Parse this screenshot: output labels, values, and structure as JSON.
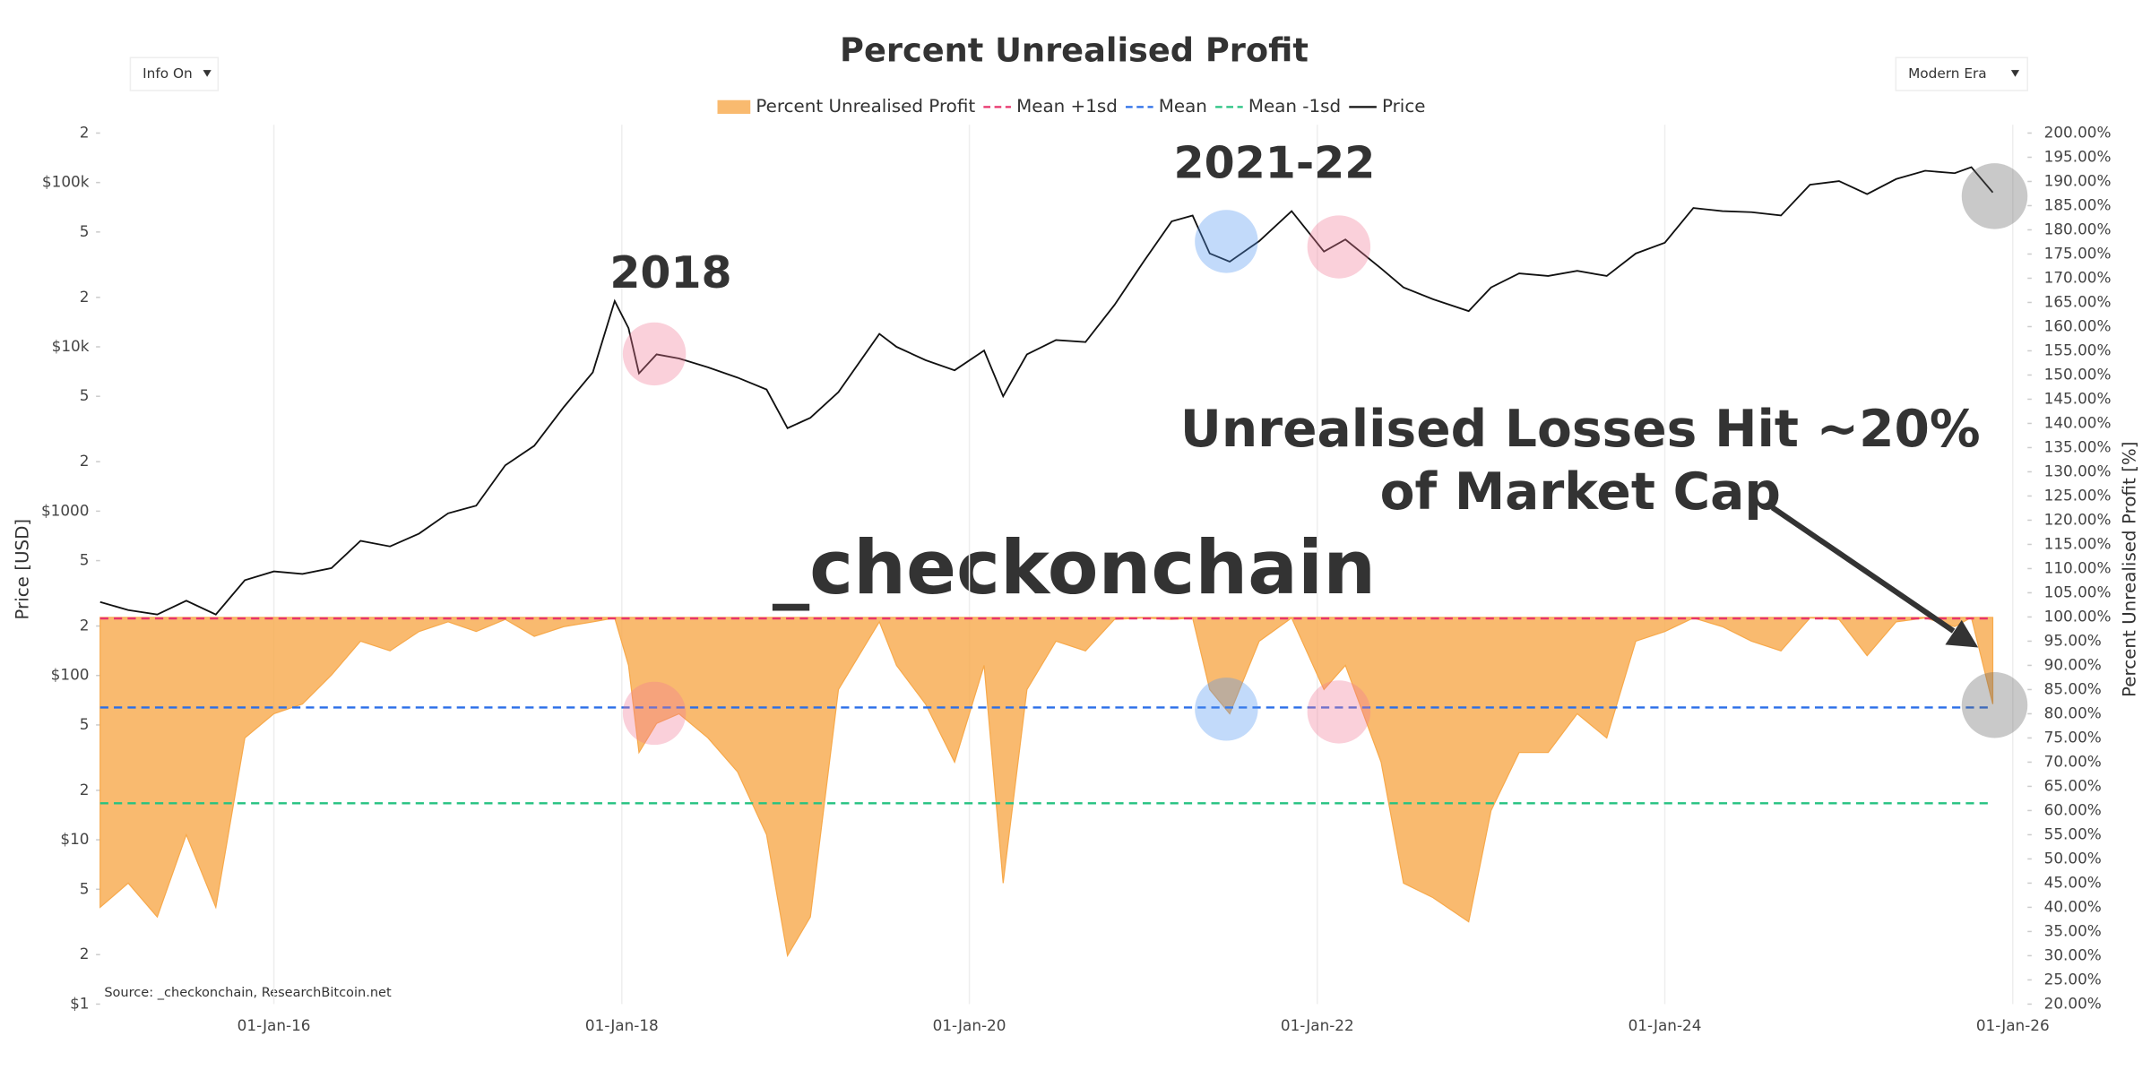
{
  "chart_data": {
    "type": "area-line",
    "title": "Percent Unrealised Profit",
    "controls": [
      "Info On",
      "Modern Era"
    ],
    "y_label": "Price [USD]",
    "y2_label": "Percent Unrealised Profit [%]",
    "source": "Source: _checkonchain, ResearchBitcoin.net",
    "watermark": "_checkonchain",
    "annotations": [
      "2018",
      "2021-22"
    ],
    "callout": [
      "Unrealised Losses Hit ~20%",
      "of Market Cap"
    ],
    "log_y": true,
    "xgrid": true,
    "xlim": [
      "2015-01-01",
      "2026-02-01"
    ],
    "xticks": [
      {
        "value": "2016-01-01",
        "label": "01-Jan-16"
      },
      {
        "value": "2018-01-01",
        "label": "01-Jan-18"
      },
      {
        "value": "2020-01-01",
        "label": "01-Jan-20"
      },
      {
        "value": "2022-01-01",
        "label": "01-Jan-22"
      },
      {
        "value": "2024-01-01",
        "label": "01-Jan-24"
      },
      {
        "value": "2026-01-01",
        "label": "01-Jan-26"
      }
    ],
    "ylim": [
      1,
      200000
    ],
    "yticks": [
      {
        "value": 1,
        "label": "$1"
      },
      2,
      5,
      {
        "value": 10,
        "label": "$10"
      },
      {
        "value": 20,
        "label": "2"
      },
      {
        "value": 50,
        "label": "5"
      },
      {
        "value": 100,
        "label": "$100"
      },
      {
        "value": 200,
        "label": "2"
      },
      {
        "value": 500,
        "label": "5"
      },
      {
        "value": 1000,
        "label": "$1000"
      },
      {
        "value": 2000,
        "label": "2"
      },
      {
        "value": 5000,
        "label": "5"
      },
      {
        "value": 10000,
        "label": "$10k"
      },
      {
        "value": 20000,
        "label": "2"
      },
      {
        "value": 50000,
        "label": "5"
      },
      {
        "value": 100000,
        "label": "$100k"
      },
      {
        "value": 200000,
        "label": "2"
      }
    ],
    "y2lim": [
      20,
      200
    ],
    "y2ticks": [
      {
        "value": 20,
        "label": "20.00%"
      },
      {
        "value": 25,
        "label": "25.00%"
      },
      {
        "value": 30,
        "label": "30.00%"
      },
      {
        "value": 35,
        "label": "35.00%"
      },
      {
        "value": 40,
        "label": "40.00%"
      },
      {
        "value": 45,
        "label": "45.00%"
      },
      {
        "value": 50,
        "label": "50.00%"
      },
      {
        "value": 55,
        "label": "55.00%"
      },
      {
        "value": 60,
        "label": "60.00%"
      },
      {
        "value": 65,
        "label": "65.00%"
      },
      {
        "value": 70,
        "label": "70.00%"
      },
      {
        "value": 75,
        "label": "75.00%"
      },
      {
        "value": 80,
        "label": "80.00%"
      },
      {
        "value": 85,
        "label": "85.00%"
      },
      {
        "value": 90,
        "label": "90.00%"
      },
      {
        "value": 95,
        "label": "95.00%"
      },
      {
        "value": 100,
        "label": "100.00%"
      },
      {
        "value": 105,
        "label": "105.00%"
      },
      {
        "value": 110,
        "label": "110.00%"
      },
      {
        "value": 115,
        "label": "115.00%"
      },
      {
        "value": 120,
        "label": "120.00%"
      },
      {
        "value": 125,
        "label": "125.00%"
      },
      {
        "value": 130,
        "label": "130.00%"
      },
      {
        "value": 135,
        "label": "135.00%"
      },
      {
        "value": 140,
        "label": "140.00%"
      },
      {
        "value": 145,
        "label": "145.00%"
      },
      {
        "value": 150,
        "label": "150.00%"
      },
      {
        "value": 155,
        "label": "155.00%"
      },
      {
        "value": 160,
        "label": "160.00%"
      },
      {
        "value": 165,
        "label": "165.00%"
      },
      {
        "value": 170,
        "label": "170.00%"
      },
      {
        "value": 175,
        "label": "175.00%"
      },
      {
        "value": 180,
        "label": "180.00%"
      },
      {
        "value": 185,
        "label": "185.00%"
      },
      {
        "value": 190,
        "label": "190.00%"
      },
      {
        "value": 195,
        "label": "195.00%"
      },
      {
        "value": 200,
        "label": "200.00%"
      }
    ],
    "series": [
      {
        "name": "Percent Unrealised Profit",
        "kind": "area",
        "axis": "y2",
        "color": "#f7a94b",
        "x": [
          "2015-01-01",
          "2015-03-01",
          "2015-05-01",
          "2015-07-01",
          "2015-09-01",
          "2015-11-01",
          "2016-01-01",
          "2016-03-01",
          "2016-05-01",
          "2016-07-01",
          "2016-09-01",
          "2016-11-01",
          "2017-01-01",
          "2017-03-01",
          "2017-05-01",
          "2017-07-01",
          "2017-09-01",
          "2017-11-01",
          "2017-12-17",
          "2018-01-15",
          "2018-02-06",
          "2018-03-15",
          "2018-05-01",
          "2018-07-01",
          "2018-09-01",
          "2018-11-01",
          "2018-12-15",
          "2019-02-01",
          "2019-04-01",
          "2019-06-26",
          "2019-08-01",
          "2019-10-01",
          "2019-12-01",
          "2020-02-01",
          "2020-03-12",
          "2020-05-01",
          "2020-07-01",
          "2020-09-01",
          "2020-11-01",
          "2021-01-01",
          "2021-03-01",
          "2021-04-14",
          "2021-05-20",
          "2021-07-01",
          "2021-09-01",
          "2021-11-08",
          "2022-01-15",
          "2022-03-01",
          "2022-05-15",
          "2022-07-01",
          "2022-09-01",
          "2022-11-15",
          "2023-01-01",
          "2023-03-01",
          "2023-05-01",
          "2023-07-01",
          "2023-09-01",
          "2023-11-01",
          "2024-01-01",
          "2024-03-01",
          "2024-05-01",
          "2024-07-01",
          "2024-09-01",
          "2024-11-01",
          "2025-01-01",
          "2025-03-01",
          "2025-05-01",
          "2025-07-01",
          "2025-09-01",
          "2025-10-06",
          "2025-11-20"
        ],
        "values": [
          40,
          45,
          38,
          55,
          40,
          75,
          80,
          82,
          88,
          95,
          93,
          97,
          99,
          97,
          99.5,
          96,
          98,
          99,
          99.8,
          90,
          72,
          78,
          80,
          75,
          68,
          55,
          30,
          38,
          85,
          99,
          90,
          82,
          70,
          90,
          45,
          85,
          95,
          93,
          99.5,
          99.8,
          99.5,
          99.8,
          85,
          80,
          95,
          99.8,
          85,
          90,
          70,
          45,
          42,
          37,
          60,
          72,
          72,
          80,
          75,
          95,
          97,
          99.8,
          98,
          95,
          93,
          99.8,
          99.5,
          92,
          99,
          99.8,
          98,
          99.9,
          82
        ]
      },
      {
        "name": "Mean +1sd",
        "kind": "dash",
        "axis": "y2",
        "color": "#e8336b",
        "x": [
          "2015-01-01",
          "2025-11-20"
        ],
        "values": [
          99.7,
          99.7
        ]
      },
      {
        "name": "Mean",
        "kind": "dash",
        "axis": "y2",
        "color": "#2a6ee8",
        "x": [
          "2015-01-01",
          "2025-11-20"
        ],
        "values": [
          81.3,
          81.3
        ]
      },
      {
        "name": "Mean -1sd",
        "kind": "dash",
        "axis": "y2",
        "color": "#26c281",
        "x": [
          "2015-01-01",
          "2025-11-20"
        ],
        "values": [
          61.5,
          61.5
        ]
      },
      {
        "name": "Price",
        "kind": "line",
        "axis": "y",
        "color": "#111111",
        "x": [
          "2015-01-01",
          "2015-03-01",
          "2015-05-01",
          "2015-07-01",
          "2015-09-01",
          "2015-11-01",
          "2016-01-01",
          "2016-03-01",
          "2016-05-01",
          "2016-07-01",
          "2016-09-01",
          "2016-11-01",
          "2017-01-01",
          "2017-03-01",
          "2017-05-01",
          "2017-07-01",
          "2017-09-01",
          "2017-11-01",
          "2017-12-17",
          "2018-01-15",
          "2018-02-06",
          "2018-03-15",
          "2018-05-01",
          "2018-07-01",
          "2018-09-01",
          "2018-11-01",
          "2018-12-15",
          "2019-02-01",
          "2019-04-01",
          "2019-06-26",
          "2019-08-01",
          "2019-10-01",
          "2019-12-01",
          "2020-02-01",
          "2020-03-12",
          "2020-05-01",
          "2020-07-01",
          "2020-09-01",
          "2020-11-01",
          "2021-01-01",
          "2021-03-01",
          "2021-04-14",
          "2021-05-20",
          "2021-07-01",
          "2021-09-01",
          "2021-11-08",
          "2022-01-15",
          "2022-03-01",
          "2022-05-15",
          "2022-07-01",
          "2022-09-01",
          "2022-11-15",
          "2023-01-01",
          "2023-03-01",
          "2023-05-01",
          "2023-07-01",
          "2023-09-01",
          "2023-11-01",
          "2024-01-01",
          "2024-03-01",
          "2024-05-01",
          "2024-07-01",
          "2024-09-01",
          "2024-11-01",
          "2025-01-01",
          "2025-03-01",
          "2025-05-01",
          "2025-07-01",
          "2025-09-01",
          "2025-10-06",
          "2025-11-20"
        ],
        "values": [
          280,
          250,
          235,
          285,
          235,
          380,
          430,
          415,
          450,
          660,
          610,
          730,
          970,
          1080,
          1900,
          2500,
          4300,
          7000,
          19000,
          13000,
          6900,
          9000,
          8500,
          7500,
          6500,
          5500,
          3200,
          3700,
          5300,
          12000,
          10000,
          8300,
          7200,
          9500,
          5000,
          9000,
          11000,
          10700,
          18000,
          33000,
          58000,
          63000,
          37000,
          33000,
          44000,
          67000,
          38000,
          45000,
          30000,
          23000,
          19500,
          16500,
          23000,
          28000,
          27000,
          29000,
          27000,
          37000,
          43000,
          70000,
          67000,
          66000,
          63000,
          97000,
          102000,
          85000,
          105000,
          118000,
          114000,
          124000,
          87000
        ]
      }
    ]
  }
}
